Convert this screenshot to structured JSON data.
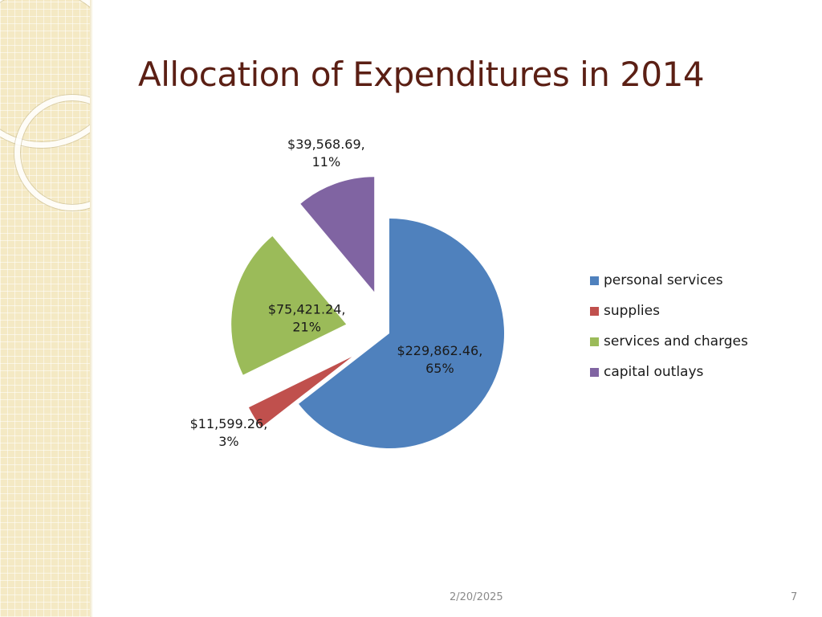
{
  "slide": {
    "title": "Allocation of Expenditures in 2014",
    "date": "2/20/2025",
    "page_number": "7"
  },
  "chart_data": {
    "type": "pie",
    "title": "",
    "exploded": true,
    "legend_position": "right",
    "slices": [
      {
        "name": "personal services",
        "value": 229862.46,
        "percent": 65,
        "value_label": "$229,862.46,",
        "percent_label": "65%",
        "color": "#4f81bd"
      },
      {
        "name": "supplies",
        "value": 11599.26,
        "percent": 3,
        "value_label": "$11,599.26,",
        "percent_label": "3%",
        "color": "#c0504d"
      },
      {
        "name": "services and charges",
        "value": 75421.24,
        "percent": 21,
        "value_label": "$75,421.24,",
        "percent_label": "21%",
        "color": "#9bbb59"
      },
      {
        "name": "capital outlays",
        "value": 39568.69,
        "percent": 11,
        "value_label": "$39,568.69,",
        "percent_label": "11%",
        "color": "#8064a2"
      }
    ]
  }
}
